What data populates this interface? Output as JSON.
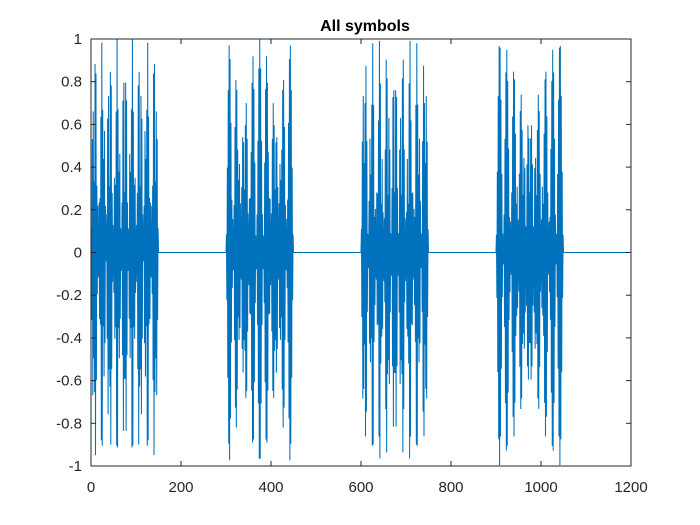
{
  "chart_data": {
    "type": "line",
    "title": "All symbols",
    "xlabel": "",
    "ylabel": "",
    "xlim": [
      0,
      1200
    ],
    "ylim": [
      -1,
      1
    ],
    "x_ticks": [
      0,
      200,
      400,
      600,
      800,
      1000,
      1200
    ],
    "y_ticks": [
      -1,
      -0.8,
      -0.6,
      -0.4,
      -0.2,
      0,
      0.2,
      0.4,
      0.6,
      0.8,
      1
    ],
    "x_tick_labels": [
      "0",
      "200",
      "400",
      "600",
      "800",
      "1000",
      "1200"
    ],
    "y_tick_labels": [
      "-1",
      "-0.8",
      "-0.6",
      "-0.4",
      "-0.2",
      "0",
      "0.2",
      "0.4",
      "0.6",
      "0.8",
      "1"
    ],
    "grid": false,
    "legend": "none",
    "line_color": "#0072BD",
    "series": [
      {
        "samples": 1200,
        "bursts": [
          {
            "x_start": 0,
            "x_end": 150,
            "amplitude": 1,
            "oscillations": 22
          },
          {
            "x_start": 300,
            "x_end": 450,
            "amplitude": 1,
            "oscillations": 11
          },
          {
            "x_start": 600,
            "x_end": 750,
            "amplitude": 1,
            "oscillations": 20
          },
          {
            "x_start": 900,
            "x_end": 1050,
            "amplitude": 1,
            "oscillations": 10
          }
        ],
        "baseline_value": 0
      }
    ]
  }
}
